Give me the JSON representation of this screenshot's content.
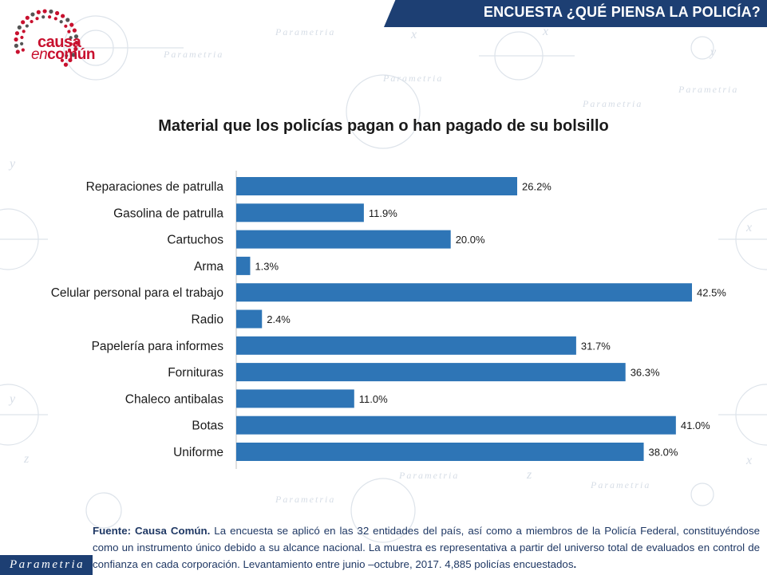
{
  "header": {
    "title": "ENCUESTA ¿QUÉ PIENSA LA POLICÍA?"
  },
  "logo": {
    "line1": "causa",
    "line2_prefix": "en",
    "line2": "común"
  },
  "watermark": {
    "brand": "Parametria"
  },
  "chart_data": {
    "type": "bar",
    "orientation": "horizontal",
    "title": "Material que los policías pagan o han pagado de su bolsillo",
    "categories": [
      "Reparaciones de patrulla",
      "Gasolina de patrulla",
      "Cartuchos",
      "Arma",
      "Celular personal para el trabajo",
      "Radio",
      "Papelería para informes",
      "Fornituras",
      "Chaleco antibalas",
      "Botas",
      "Uniforme"
    ],
    "values": [
      26.2,
      11.9,
      20.0,
      1.3,
      42.5,
      2.4,
      31.7,
      36.3,
      11.0,
      41.0,
      38.0
    ],
    "value_labels": [
      "26.2%",
      "11.9%",
      "20.0%",
      "1.3%",
      "42.5%",
      "2.4%",
      "31.7%",
      "36.3%",
      "11.0%",
      "41.0%",
      "38.0%"
    ],
    "xlim": [
      0,
      42.5
    ],
    "grid": false,
    "bar_color": "#2e75b6"
  },
  "footer": {
    "source_label": "Fuente: Causa Común.",
    "source_text": " La encuesta se aplicó en las 32 entidades del país, así como a miembros de la Policía Federal, constituyéndose como un instrumento único debido a su alcance nacional. La muestra es representativa a partir del universo total de evaluados en control de confianza en cada corporación. Levantamiento entre junio –octubre, 2017. 4,885 policías encuestados",
    "end": "."
  },
  "brand_tab": {
    "label": "Parametria"
  },
  "colors": {
    "header": "#1d3f73",
    "accent": "#c8102e",
    "bar": "#2e75b6"
  }
}
